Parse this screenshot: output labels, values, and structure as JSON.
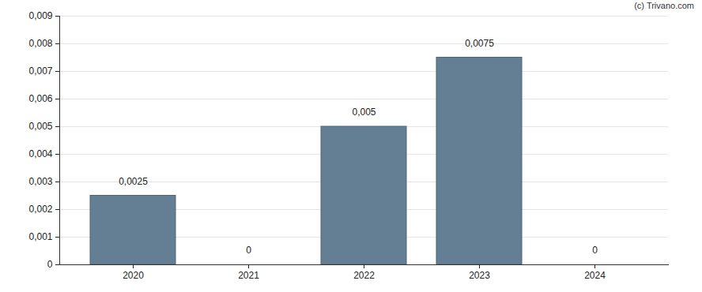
{
  "chart_data": {
    "type": "bar",
    "caption": "(c) Trivano.com",
    "categories": [
      "2020",
      "2021",
      "2022",
      "2023",
      "2024"
    ],
    "values": [
      0.0025,
      0,
      0.005,
      0.0075,
      0
    ],
    "value_labels": [
      "0,0025",
      "0",
      "0,005",
      "0,0075",
      "0"
    ],
    "data_labels": true,
    "color": "#647f93",
    "ylim": [
      0,
      0.009
    ],
    "yticks": [
      0,
      {
        "value": 0.001,
        "label": "0,001"
      },
      {
        "value": 0.002,
        "label": "0,002"
      },
      {
        "value": 0.003,
        "label": "0,003"
      },
      {
        "value": 0.004,
        "label": "0,004"
      },
      {
        "value": 0.005,
        "label": "0,005"
      },
      {
        "value": 0.006,
        "label": "0,006"
      },
      {
        "value": 0.007,
        "label": "0,007"
      },
      {
        "value": 0.008,
        "label": "0,008"
      },
      {
        "value": 0.009,
        "label": "0,009"
      }
    ],
    "grid": true
  }
}
